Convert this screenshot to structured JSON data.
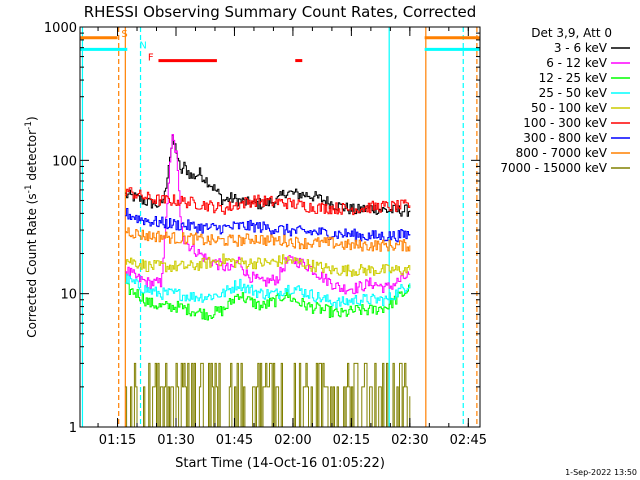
{
  "chart_data": {
    "type": "line",
    "title": "RHESSI Observing Summary Count Rates, Corrected",
    "xlabel": "Start Time (14-Oct-16 01:05:22)",
    "ylabel_main": "Corrected Count Rate (s",
    "ylabel_sup1": "-1",
    "ylabel_mid": " detector",
    "ylabel_sup2": "-1",
    "ylabel_end": ")",
    "yscale": "log",
    "ylim": [
      1,
      1000
    ],
    "yticks": [
      {
        "value": 1,
        "label": "1"
      },
      {
        "value": 10,
        "label": "10"
      },
      {
        "value": 100,
        "label": "100"
      },
      {
        "value": 1000,
        "label": "1000"
      }
    ],
    "xlim_min": [
      65.37,
      168.0
    ],
    "xticks": [
      {
        "value": 75,
        "label": "01:15"
      },
      {
        "value": 90,
        "label": "01:30"
      },
      {
        "value": 105,
        "label": "01:45"
      },
      {
        "value": 120,
        "label": "02:00"
      },
      {
        "value": 135,
        "label": "02:15"
      },
      {
        "value": 150,
        "label": "02:30"
      },
      {
        "value": 165,
        "label": "02:45"
      }
    ],
    "legend_position": "right",
    "legend_header": "Det 3,9, Att 0",
    "series": [
      {
        "name": "3 - 6 keV",
        "color": "#000000",
        "x": [
          77,
          80,
          83,
          86,
          87,
          88,
          89,
          90,
          91,
          92,
          94,
          96,
          98,
          100,
          102,
          104,
          108,
          112,
          116,
          118,
          120,
          124,
          128,
          132,
          136,
          140,
          144,
          150
        ],
        "y": [
          55,
          52,
          48,
          46,
          55,
          95,
          140,
          120,
          80,
          90,
          75,
          80,
          70,
          60,
          50,
          52,
          48,
          47,
          50,
          58,
          56,
          55,
          50,
          45,
          42,
          44,
          42,
          42
        ]
      },
      {
        "name": "6 - 12 keV",
        "color": "#ff00ff",
        "x": [
          77,
          80,
          83,
          86,
          87,
          88,
          89,
          90,
          91,
          92,
          94,
          98,
          102,
          104,
          106,
          108,
          112,
          116,
          118,
          120,
          124,
          128,
          132,
          136,
          140,
          144,
          150
        ],
        "y": [
          15,
          13,
          12,
          12,
          25,
          70,
          150,
          110,
          40,
          25,
          22,
          18,
          16,
          15,
          18,
          14,
          12,
          13,
          17,
          18,
          16,
          13,
          11,
          11,
          12,
          11,
          14
        ]
      },
      {
        "name": "12 - 25 keV",
        "color": "#00ff00",
        "x": [
          77,
          80,
          83,
          86,
          90,
          94,
          98,
          102,
          106,
          108,
          112,
          116,
          118,
          120,
          124,
          128,
          132,
          136,
          140,
          144,
          150
        ],
        "y": [
          11,
          10,
          8.5,
          8,
          8,
          7.5,
          7,
          7.5,
          10,
          9,
          8,
          9,
          10,
          9,
          8,
          7.5,
          7,
          7.5,
          7.5,
          8,
          11
        ]
      },
      {
        "name": "25 - 50 keV",
        "color": "#00ffff",
        "x": [
          77,
          80,
          83,
          86,
          90,
          94,
          98,
          102,
          106,
          108,
          112,
          116,
          118,
          120,
          124,
          128,
          132,
          136,
          140,
          144,
          150
        ],
        "y": [
          13,
          11.5,
          10.5,
          10,
          10,
          9.5,
          9.5,
          10,
          12,
          11,
          10,
          10,
          11,
          11,
          10,
          9,
          8.5,
          9,
          9,
          9,
          12
        ]
      },
      {
        "name": "50 - 100 keV",
        "color": "#cccc00",
        "x": [
          77,
          80,
          83,
          86,
          90,
          94,
          98,
          102,
          106,
          110,
          114,
          118,
          122,
          126,
          130,
          134,
          138,
          142,
          146,
          150
        ],
        "y": [
          18,
          17,
          16,
          16,
          16,
          16,
          17,
          18,
          17,
          17,
          17,
          18,
          17,
          16,
          15,
          15,
          15,
          15,
          15,
          15
        ]
      },
      {
        "name": "100 - 300 keV",
        "color": "#ff0000",
        "x": [
          77,
          80,
          83,
          86,
          90,
          94,
          98,
          102,
          106,
          110,
          114,
          118,
          122,
          126,
          130,
          134,
          138,
          142,
          146,
          150
        ],
        "y": [
          60,
          55,
          52,
          50,
          50,
          48,
          46,
          43,
          47,
          50,
          49,
          48,
          46,
          44,
          44,
          43,
          44,
          45,
          45,
          46
        ]
      },
      {
        "name": "300 - 800 keV",
        "color": "#0000ff",
        "x": [
          77,
          80,
          83,
          86,
          90,
          94,
          98,
          102,
          106,
          110,
          114,
          118,
          122,
          126,
          130,
          134,
          138,
          142,
          146,
          150
        ],
        "y": [
          40,
          37,
          35,
          34,
          33,
          32,
          31,
          31,
          32,
          32,
          31,
          30,
          29,
          29,
          28,
          28,
          27,
          27,
          27,
          28
        ]
      },
      {
        "name": "800 - 7000 keV",
        "color": "#ff8000",
        "x": [
          77,
          80,
          83,
          86,
          90,
          94,
          98,
          102,
          106,
          110,
          114,
          118,
          122,
          126,
          130,
          134,
          138,
          142,
          146,
          150
        ],
        "y": [
          30,
          28,
          27,
          27,
          26,
          26,
          25,
          25,
          25,
          26,
          25,
          25,
          24,
          24,
          24,
          23,
          23,
          23,
          23,
          23
        ]
      },
      {
        "name": "7000 - 15000 keV",
        "color": "#808000",
        "x": [
          77,
          80,
          83,
          86,
          90,
          94,
          98,
          102,
          106,
          110,
          114,
          118,
          122,
          126,
          130,
          134,
          138,
          142,
          146,
          150
        ],
        "y": [
          1.5,
          1.2,
          1.0,
          1.0,
          1.3,
          1.0,
          1.0,
          1.5,
          1.8,
          1.6,
          1.7,
          1.6,
          1.5,
          1.6,
          1.7,
          1.6,
          1.5,
          1.6,
          1.6,
          1.7
        ]
      }
    ],
    "segments": [
      {
        "color": "#ff8000",
        "y": 830,
        "x": [
          65.37,
          75.0
        ]
      },
      {
        "color": "#00ffff",
        "y": 680,
        "x": [
          65.37,
          77.5
        ]
      },
      {
        "color": "#ff8000",
        "y": 830,
        "x": [
          153.8,
          168.0
        ]
      },
      {
        "color": "#00ffff",
        "y": 680,
        "x": [
          153.8,
          168.0
        ]
      },
      {
        "color": "#ff0000",
        "y": 560,
        "x": [
          85.5,
          100.5
        ]
      },
      {
        "color": "#ff0000",
        "y": 560,
        "x": [
          120.6,
          122.4
        ]
      }
    ],
    "vertical_lines": [
      {
        "x": 66.0,
        "color": "#00ffff",
        "style": "solid"
      },
      {
        "x": 75.3,
        "color": "#ff8000",
        "style": "dash"
      },
      {
        "x": 77.0,
        "color": "#ff8000",
        "style": "solid"
      },
      {
        "x": 80.9,
        "color": "#00ffff",
        "style": "dash"
      },
      {
        "x": 144.7,
        "color": "#00ffff",
        "style": "solid"
      },
      {
        "x": 154.1,
        "color": "#ff8000",
        "style": "solid"
      },
      {
        "x": 163.7,
        "color": "#00ffff",
        "style": "dash"
      },
      {
        "x": 167.2,
        "color": "#ff8000",
        "style": "dash"
      }
    ],
    "flag_labels": [
      {
        "text": "S",
        "color": "#ff8000",
        "x": 76.0,
        "y": 840
      },
      {
        "text": "N",
        "color": "#00ffff",
        "x": 80.6,
        "y": 690
      },
      {
        "text": "F",
        "color": "#ff0000",
        "x": 82.8,
        "y": 560
      }
    ],
    "footer_timestamp": "1-Sep-2022 13:50"
  }
}
